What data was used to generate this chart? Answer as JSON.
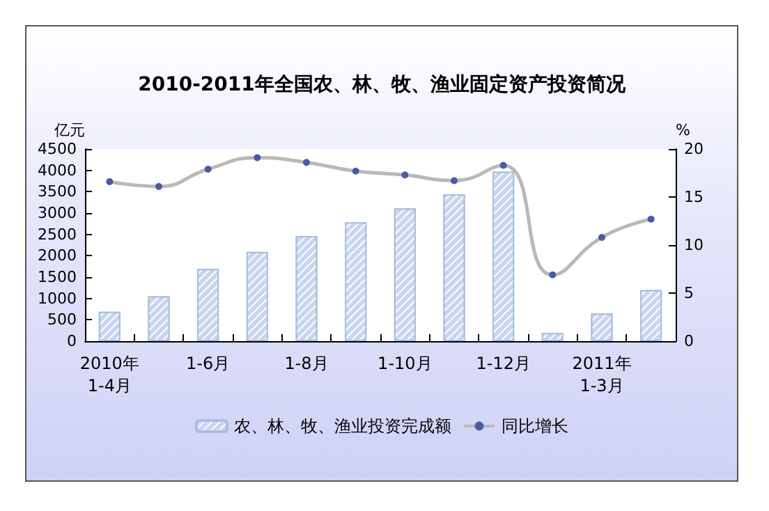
{
  "chart_data": {
    "type": "bar",
    "title": "2010-2011年全国农、林、牧、渔业固定资产投资简况",
    "ylabel": "亿元",
    "y2label": "%",
    "categories": [
      "2010年\n1-4月",
      null,
      "1-6月",
      null,
      "1-8月",
      null,
      "1-10月",
      null,
      "1-12月",
      null,
      "2011年\n1-3月",
      null
    ],
    "series": [
      {
        "name": "农、林、牧、渔业投资完成额",
        "color": "#c9d6f0",
        "values": [
          690,
          1050,
          1690,
          2090,
          2460,
          2790,
          3110,
          3440,
          3970,
          190,
          650,
          1200
        ]
      },
      {
        "name": "同比增长",
        "type": "line",
        "axis": "y2",
        "color": "#4a5aa8",
        "values": [
          16.6,
          16.1,
          17.9,
          19.1,
          18.6,
          17.7,
          17.3,
          16.7,
          18.3,
          6.9,
          10.8,
          12.7
        ]
      }
    ],
    "ylim": [
      0,
      4500
    ],
    "yticks": [
      0,
      500,
      1000,
      1500,
      2000,
      2500,
      3000,
      3500,
      4000,
      4500
    ],
    "y2lim": [
      0,
      20
    ],
    "y2ticks": [
      0,
      5,
      10,
      15,
      20
    ],
    "legend": "bottom",
    "grid": false,
    "marker": "circle"
  }
}
